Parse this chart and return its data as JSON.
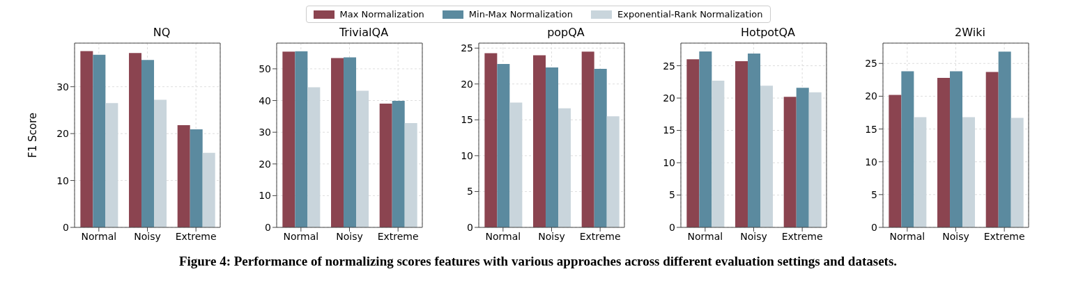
{
  "chart_data": [
    {
      "type": "bar",
      "title": "NQ",
      "ylabel": "F1 Score",
      "categories": [
        "Normal",
        "Noisy",
        "Extreme"
      ],
      "series": [
        {
          "name": "Max Normalization",
          "color": "#8b4450",
          "values": [
            37.6,
            37.2,
            21.8
          ]
        },
        {
          "name": "Min-Max Normalization",
          "color": "#5b8a9f",
          "values": [
            36.8,
            35.7,
            20.9
          ]
        },
        {
          "name": "Exponential-Rank Normalization",
          "color": "#c9d5dc",
          "values": [
            26.5,
            27.2,
            15.9
          ]
        }
      ],
      "ylim": [
        0,
        39.3
      ],
      "yticks": [
        0,
        10,
        20,
        30
      ],
      "grid": true,
      "legend": "top",
      "annotations": [
        "Figure 4: Performance of normalizing scores features with various approaches across different evaluation settings and datasets."
      ]
    },
    {
      "type": "bar",
      "title": "TrivialQA",
      "categories": [
        "Normal",
        "Noisy",
        "Extreme"
      ],
      "series": [
        {
          "color": "#8b4450",
          "values": [
            55.4,
            53.4,
            39.0
          ]
        },
        {
          "color": "#5b8a9f",
          "values": [
            55.5,
            53.6,
            39.9
          ]
        },
        {
          "color": "#c9d5dc",
          "values": [
            44.2,
            43.1,
            32.9
          ]
        }
      ],
      "ylim": [
        0,
        58.1
      ],
      "yticks": [
        0,
        10,
        20,
        30,
        40,
        50
      ],
      "grid": true
    },
    {
      "type": "bar",
      "title": "popQA",
      "categories": [
        "Normal",
        "Noisy",
        "Extreme"
      ],
      "series": [
        {
          "color": "#8b4450",
          "values": [
            24.3,
            24.0,
            24.5
          ]
        },
        {
          "color": "#5b8a9f",
          "values": [
            22.8,
            22.3,
            22.1
          ]
        },
        {
          "color": "#c9d5dc",
          "values": [
            17.4,
            16.6,
            15.5
          ]
        }
      ],
      "ylim": [
        0,
        25.7
      ],
      "yticks": [
        0,
        5,
        10,
        15,
        20,
        25
      ],
      "grid": true
    },
    {
      "type": "bar",
      "title": "HotpotQA",
      "categories": [
        "Normal",
        "Noisy",
        "Extreme"
      ],
      "series": [
        {
          "color": "#8b4450",
          "values": [
            26.0,
            25.7,
            20.2
          ]
        },
        {
          "color": "#5b8a9f",
          "values": [
            27.2,
            26.9,
            21.6
          ]
        },
        {
          "color": "#c9d5dc",
          "values": [
            22.7,
            21.9,
            20.9
          ]
        }
      ],
      "ylim": [
        0,
        28.5
      ],
      "yticks": [
        0,
        5,
        10,
        15,
        20,
        25
      ],
      "grid": true
    },
    {
      "type": "bar",
      "title": "2Wiki",
      "categories": [
        "Normal",
        "Noisy",
        "Extreme"
      ],
      "series": [
        {
          "color": "#8b4450",
          "values": [
            20.2,
            22.8,
            23.7
          ]
        },
        {
          "color": "#5b8a9f",
          "values": [
            23.8,
            23.8,
            26.8
          ]
        },
        {
          "color": "#c9d5dc",
          "values": [
            16.8,
            16.8,
            16.7
          ]
        }
      ],
      "ylim": [
        0,
        28.1
      ],
      "yticks": [
        0,
        5,
        10,
        15,
        20,
        25
      ],
      "grid": true
    }
  ]
}
